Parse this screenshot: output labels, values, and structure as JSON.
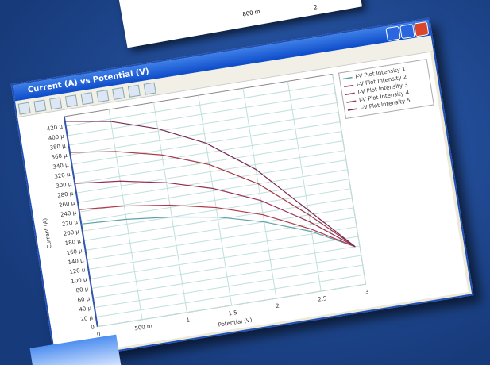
{
  "backdrop_window": {
    "labels": [
      "800 m",
      "2"
    ]
  },
  "chart_data": {
    "type": "line",
    "title": "Current (A) vs Potential (V)",
    "x_label": "Potential (V)",
    "y_label": "Current (A)",
    "x": [
      0,
      0.5,
      1,
      1.5,
      2,
      2.5,
      2.95
    ],
    "series": [
      {
        "name": "I-V Plot Intensity 1",
        "color": "#5fa3a8",
        "values": [
          0.000215,
          0.00021,
          0.0002,
          0.000185,
          0.00016,
          0.000125,
          8e-05
        ]
      },
      {
        "name": "I-V Plot Intensity 2",
        "color": "#b0384a",
        "values": [
          0.000245,
          0.000238,
          0.000225,
          0.000205,
          0.000175,
          0.00013,
          8e-05
        ]
      },
      {
        "name": "I-V Plot Intensity 3",
        "color": "#9a2f55",
        "values": [
          0.0003,
          0.00029,
          0.000272,
          0.000245,
          0.000205,
          0.000145,
          8e-05
        ]
      },
      {
        "name": "I-V Plot Intensity 4",
        "color": "#a53a48",
        "values": [
          0.000365,
          0.000352,
          0.00033,
          0.000295,
          0.00024,
          0.00016,
          8e-05
        ]
      },
      {
        "name": "I-V Plot Intensity 5",
        "color": "#7a2a55",
        "values": [
          0.00043,
          0.000415,
          0.000385,
          0.00034,
          0.00027,
          0.00017,
          8e-05
        ]
      }
    ],
    "xlim": [
      0,
      3
    ],
    "ylim": [
      0,
      0.00044
    ],
    "xticks": [
      0,
      {
        "value": 0.5,
        "label": "500 m"
      },
      1,
      1.5,
      2,
      2.5,
      3
    ],
    "yticks": [
      0,
      {
        "value": 2e-05,
        "label": "20 µ"
      },
      {
        "value": 4e-05,
        "label": "40 µ"
      },
      {
        "value": 6e-05,
        "label": "60 µ"
      },
      {
        "value": 8e-05,
        "label": "80 µ"
      },
      {
        "value": 0.0001,
        "label": "100 µ"
      },
      {
        "value": 0.00012,
        "label": "120 µ"
      },
      {
        "value": 0.00014,
        "label": "140 µ"
      },
      {
        "value": 0.00016,
        "label": "160 µ"
      },
      {
        "value": 0.00018,
        "label": "180 µ"
      },
      {
        "value": 0.0002,
        "label": "200 µ"
      },
      {
        "value": 0.00022,
        "label": "220 µ"
      },
      {
        "value": 0.00024,
        "label": "240 µ"
      },
      {
        "value": 0.00026,
        "label": "260 µ"
      },
      {
        "value": 0.00028,
        "label": "280 µ"
      },
      {
        "value": 0.0003,
        "label": "300 µ"
      },
      {
        "value": 0.00032,
        "label": "320 µ"
      },
      {
        "value": 0.00034,
        "label": "340 µ"
      },
      {
        "value": 0.00036,
        "label": "360 µ"
      },
      {
        "value": 0.00038,
        "label": "380 µ"
      },
      {
        "value": 0.0004,
        "label": "400 µ"
      },
      {
        "value": 0.00042,
        "label": "420 µ"
      }
    ],
    "grid": true,
    "legend": "top-right"
  }
}
